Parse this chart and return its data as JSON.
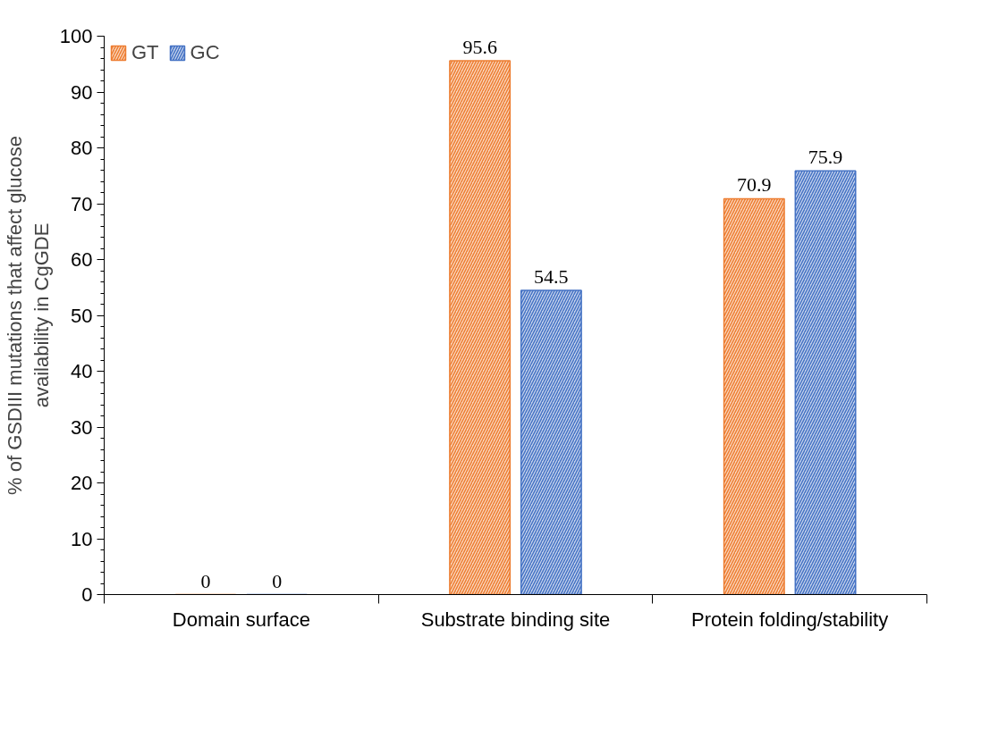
{
  "chart_data": {
    "type": "bar",
    "ylabel": "% of GSDIII mutations that affect glucose availability in CgGDE",
    "categories": [
      "Domain surface",
      "Substrate binding site",
      "Protein folding/stability"
    ],
    "series": [
      {
        "name": "GT",
        "color": "#ed7d31",
        "values": [
          0,
          95.6,
          70.9
        ]
      },
      {
        "name": "GC",
        "color": "#4472c4",
        "values": [
          0,
          54.5,
          75.9
        ]
      }
    ],
    "ylim": [
      0,
      100
    ],
    "yticks": [
      0,
      10,
      20,
      30,
      40,
      50,
      60,
      70,
      80,
      90,
      100
    ],
    "grid": false,
    "legend": "top left",
    "data_labels": true
  }
}
